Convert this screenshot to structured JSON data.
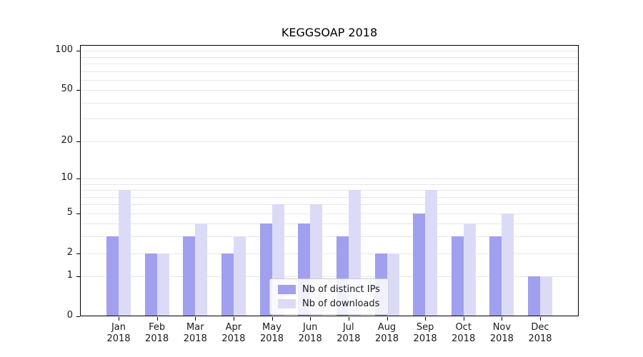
{
  "title": "KEGGSOAP 2018",
  "chart_data": {
    "type": "bar",
    "title": "KEGGSOAP 2018",
    "y_scale": "log1p",
    "ylim": [
      0,
      110
    ],
    "y_ticks": [
      0,
      1,
      2,
      5,
      10,
      20,
      50,
      100
    ],
    "grid": "horizontal minor log gridlines",
    "legend_position": "bottom-center",
    "categories": [
      "Jan 2018",
      "Feb 2018",
      "Mar 2018",
      "Apr 2018",
      "May 2018",
      "Jun 2018",
      "Jul 2018",
      "Aug 2018",
      "Sep 2018",
      "Oct 2018",
      "Nov 2018",
      "Dec 2018"
    ],
    "series": [
      {
        "name": "Nb of distinct IPs",
        "slug": "distinct-ips",
        "color": "#a0a0ee",
        "values": [
          3,
          2,
          3,
          2,
          4,
          4,
          3,
          2,
          5,
          3,
          3,
          1
        ]
      },
      {
        "name": "Nb of downloads",
        "slug": "downloads",
        "color": "#dbdbf8",
        "values": [
          8,
          2,
          4,
          3,
          6,
          6,
          8,
          2,
          8,
          4,
          5,
          1
        ]
      }
    ]
  }
}
